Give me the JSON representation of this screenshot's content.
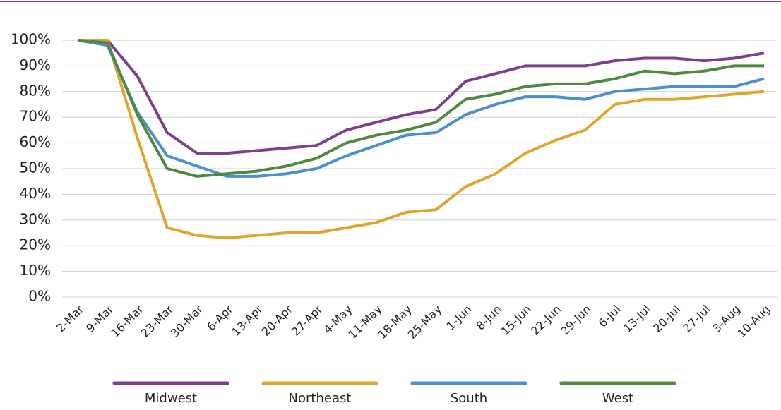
{
  "chart_data": {
    "type": "line",
    "categories": [
      "2-Mar",
      "9-Mar",
      "16-Mar",
      "23-Mar",
      "30-Mar",
      "6-Apr",
      "13-Apr",
      "20-Apr",
      "27-Apr",
      "4-May",
      "11-May",
      "18-May",
      "25-May",
      "1-Jun",
      "8-Jun",
      "15-Jun",
      "22-Jun",
      "29-Jun",
      "6-Jul",
      "13-Jul",
      "20-Jul",
      "27-Jul",
      "3-Aug",
      "10-Aug"
    ],
    "series": [
      {
        "name": "Midwest",
        "color": "#7d3f8e",
        "values": [
          100,
          100,
          86,
          64,
          56,
          56,
          57,
          58,
          59,
          65,
          68,
          71,
          73,
          84,
          87,
          90,
          90,
          90,
          92,
          93,
          93,
          92,
          93,
          95
        ]
      },
      {
        "name": "Northeast",
        "color": "#e0a52f",
        "values": [
          100,
          100,
          62,
          27,
          24,
          23,
          24,
          25,
          25,
          27,
          29,
          33,
          34,
          43,
          48,
          56,
          61,
          65,
          75,
          77,
          77,
          78,
          79,
          80
        ]
      },
      {
        "name": "South",
        "color": "#4a8fd0",
        "values": [
          100,
          98,
          72,
          55,
          51,
          47,
          47,
          48,
          50,
          55,
          59,
          63,
          64,
          71,
          75,
          78,
          78,
          77,
          80,
          81,
          82,
          82,
          82,
          85
        ]
      },
      {
        "name": "West",
        "color": "#4f8a3f",
        "values": [
          100,
          99,
          71,
          50,
          47,
          48,
          49,
          51,
          54,
          60,
          63,
          65,
          68,
          77,
          79,
          82,
          83,
          83,
          85,
          88,
          87,
          88,
          90,
          90
        ]
      }
    ],
    "ylim": [
      0,
      100
    ],
    "yticks": [
      {
        "value": 0,
        "label": "0%"
      },
      {
        "value": 10,
        "label": "10%"
      },
      {
        "value": 20,
        "label": "20%"
      },
      {
        "value": 30,
        "label": "30%"
      },
      {
        "value": 40,
        "label": "40%"
      },
      {
        "value": 50,
        "label": "50%"
      },
      {
        "value": 60,
        "label": "60%"
      },
      {
        "value": 70,
        "label": "70%"
      },
      {
        "value": 80,
        "label": "80%"
      },
      {
        "value": 90,
        "label": "90%"
      },
      {
        "value": 100,
        "label": "100%"
      }
    ],
    "grid": true,
    "legend": "bottom"
  }
}
